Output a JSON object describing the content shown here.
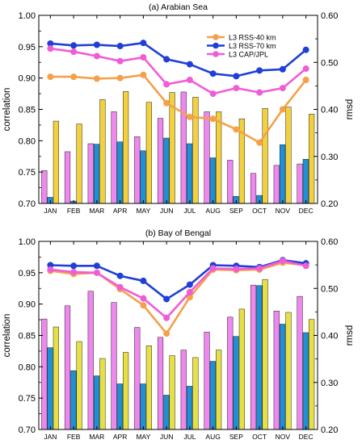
{
  "chart_data": [
    {
      "type": "bar+line",
      "title": "(a) Arabian Sea",
      "categories": [
        "JAN",
        "FEB",
        "MAR",
        "APR",
        "MAY",
        "JUN",
        "JUL",
        "AUG",
        "SEP",
        "OCT",
        "NOV",
        "DEC"
      ],
      "ylabel": "correlation",
      "y2label": "rmsd",
      "ylim": [
        0.7,
        1.0
      ],
      "y2lim": [
        0.2,
        0.6
      ],
      "yticks": [
        "0.70",
        "0.75",
        "0.80",
        "0.85",
        "0.90",
        "0.95",
        "1.00"
      ],
      "y2ticks": [
        "0.20",
        "0.30",
        "0.40",
        "0.50",
        "0.60"
      ],
      "legend_position": "top-right",
      "bars": [
        {
          "name": "L3 CAP/JPL",
          "color": "#ee88ee",
          "values": [
            0.27,
            0.31,
            0.327,
            0.395,
            0.342,
            0.381,
            0.437,
            0.395,
            0.292,
            0.264,
            0.281,
            0.284
          ]
        },
        {
          "name": "L3 RSS-70 km",
          "color": "#1f8fd6",
          "values": [
            0.213,
            0.205,
            0.326,
            0.331,
            0.312,
            0.339,
            0.327,
            0.297,
            0.215,
            0.217,
            0.325,
            0.294
          ]
        },
        {
          "name": "L3 RSS-40 km",
          "color": "#f2d13d",
          "values": [
            0.375,
            0.369,
            0.421,
            0.438,
            0.415,
            0.436,
            0.426,
            0.395,
            0.38,
            0.402,
            0.405,
            0.39
          ]
        }
      ],
      "series": [
        {
          "name": "L3 RSS-40 km",
          "color": "#f5a04a",
          "values": [
            0.902,
            0.902,
            0.899,
            0.9,
            0.905,
            0.86,
            0.838,
            0.835,
            0.818,
            0.797,
            0.85,
            0.897
          ]
        },
        {
          "name": "L3 RSS-70 km",
          "color": "#1f3fd6",
          "values": [
            0.955,
            0.952,
            0.953,
            0.951,
            0.956,
            0.93,
            0.922,
            0.907,
            0.903,
            0.912,
            0.914,
            0.945
          ]
        },
        {
          "name": "L3 CAP/JPL",
          "color": "#f05cd6",
          "values": [
            0.947,
            0.942,
            0.935,
            0.927,
            0.933,
            0.89,
            0.897,
            0.875,
            0.884,
            0.877,
            0.884,
            0.915
          ]
        }
      ]
    },
    {
      "type": "bar+line",
      "title": "(b) Bay of Bengal",
      "categories": [
        "JAN",
        "FEB",
        "MAR",
        "APR",
        "MAY",
        "JUN",
        "JUL",
        "AUG",
        "SEP",
        "OCT",
        "NOV",
        "DEC"
      ],
      "ylabel": "correlation",
      "y2label": "rmsd",
      "ylim": [
        0.7,
        1.0
      ],
      "y2lim": [
        0.2,
        0.6
      ],
      "yticks": [
        "0.70",
        "0.75",
        "0.80",
        "0.85",
        "0.90",
        "0.95",
        "1.00"
      ],
      "y2ticks": [
        "0.20",
        "0.30",
        "0.40",
        "0.50",
        "0.60"
      ],
      "bars": [
        {
          "name": "L3 CAP/JPL",
          "color": "#ee88ee",
          "values": [
            0.435,
            0.463,
            0.494,
            0.47,
            0.417,
            0.396,
            0.369,
            0.407,
            0.439,
            0.507,
            0.452,
            0.483
          ]
        },
        {
          "name": "L3 RSS-70 km",
          "color": "#1f8fd6",
          "values": [
            0.374,
            0.325,
            0.314,
            0.297,
            0.297,
            0.273,
            0.292,
            0.345,
            0.398,
            0.506,
            0.424,
            0.406
          ]
        },
        {
          "name": "L3 RSS-40 km",
          "color": "#e7e045",
          "values": [
            0.418,
            0.387,
            0.351,
            0.364,
            0.378,
            0.357,
            0.353,
            0.369,
            0.456,
            0.519,
            0.449,
            0.434
          ]
        }
      ],
      "series": [
        {
          "name": "L3 RSS-40 km",
          "color": "#f5a04a",
          "values": [
            0.953,
            0.948,
            0.95,
            0.924,
            0.898,
            0.853,
            0.911,
            0.955,
            0.954,
            0.955,
            0.966,
            0.962
          ]
        },
        {
          "name": "L3 RSS-70 km",
          "color": "#1f3fd6",
          "values": [
            0.962,
            0.961,
            0.961,
            0.945,
            0.937,
            0.908,
            0.931,
            0.962,
            0.961,
            0.959,
            0.97,
            0.965
          ]
        },
        {
          "name": "L3 CAP/JPL",
          "color": "#f05cd6",
          "values": [
            0.955,
            0.951,
            0.95,
            0.927,
            0.909,
            0.878,
            0.919,
            0.957,
            0.956,
            0.957,
            0.969,
            0.961
          ]
        }
      ]
    }
  ]
}
